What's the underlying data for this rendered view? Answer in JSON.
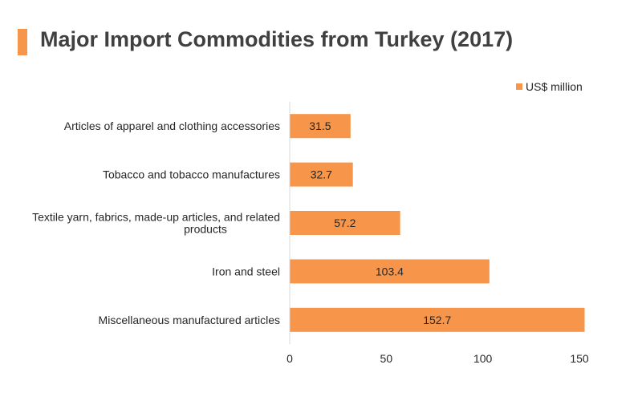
{
  "chart_data": {
    "type": "bar",
    "orientation": "horizontal",
    "title": "Major Import Commodities from Turkey (2017)",
    "categories": [
      "Articles of apparel and clothing accessories",
      "Tobacco and tobacco manufactures",
      "Textile yarn, fabrics, made-up articles, and related products",
      "Iron and steel",
      "Miscellaneous manufactured articles"
    ],
    "category_lines": [
      [
        "Articles of apparel and clothing accessories"
      ],
      [
        "Tobacco and tobacco manufactures"
      ],
      [
        "Textile yarn, fabrics, made-up articles, and related",
        "products"
      ],
      [
        "Iron and steel"
      ],
      [
        "Miscellaneous manufactured articles"
      ]
    ],
    "series": [
      {
        "name": "US$ million",
        "values": [
          31.5,
          32.7,
          57.2,
          103.4,
          152.7
        ]
      }
    ],
    "value_labels": [
      "31.5",
      "32.7",
      "57.2",
      "103.4",
      "152.7"
    ],
    "xlim": [
      0,
      150
    ],
    "x_ticks": [
      "0",
      "50",
      "100",
      "150"
    ],
    "legend_position": "top-right",
    "grid": false,
    "colors": {
      "bar": "#f7964a",
      "accent": "#f7964a",
      "axis": "#d9d9d9",
      "title": "#404040"
    }
  }
}
